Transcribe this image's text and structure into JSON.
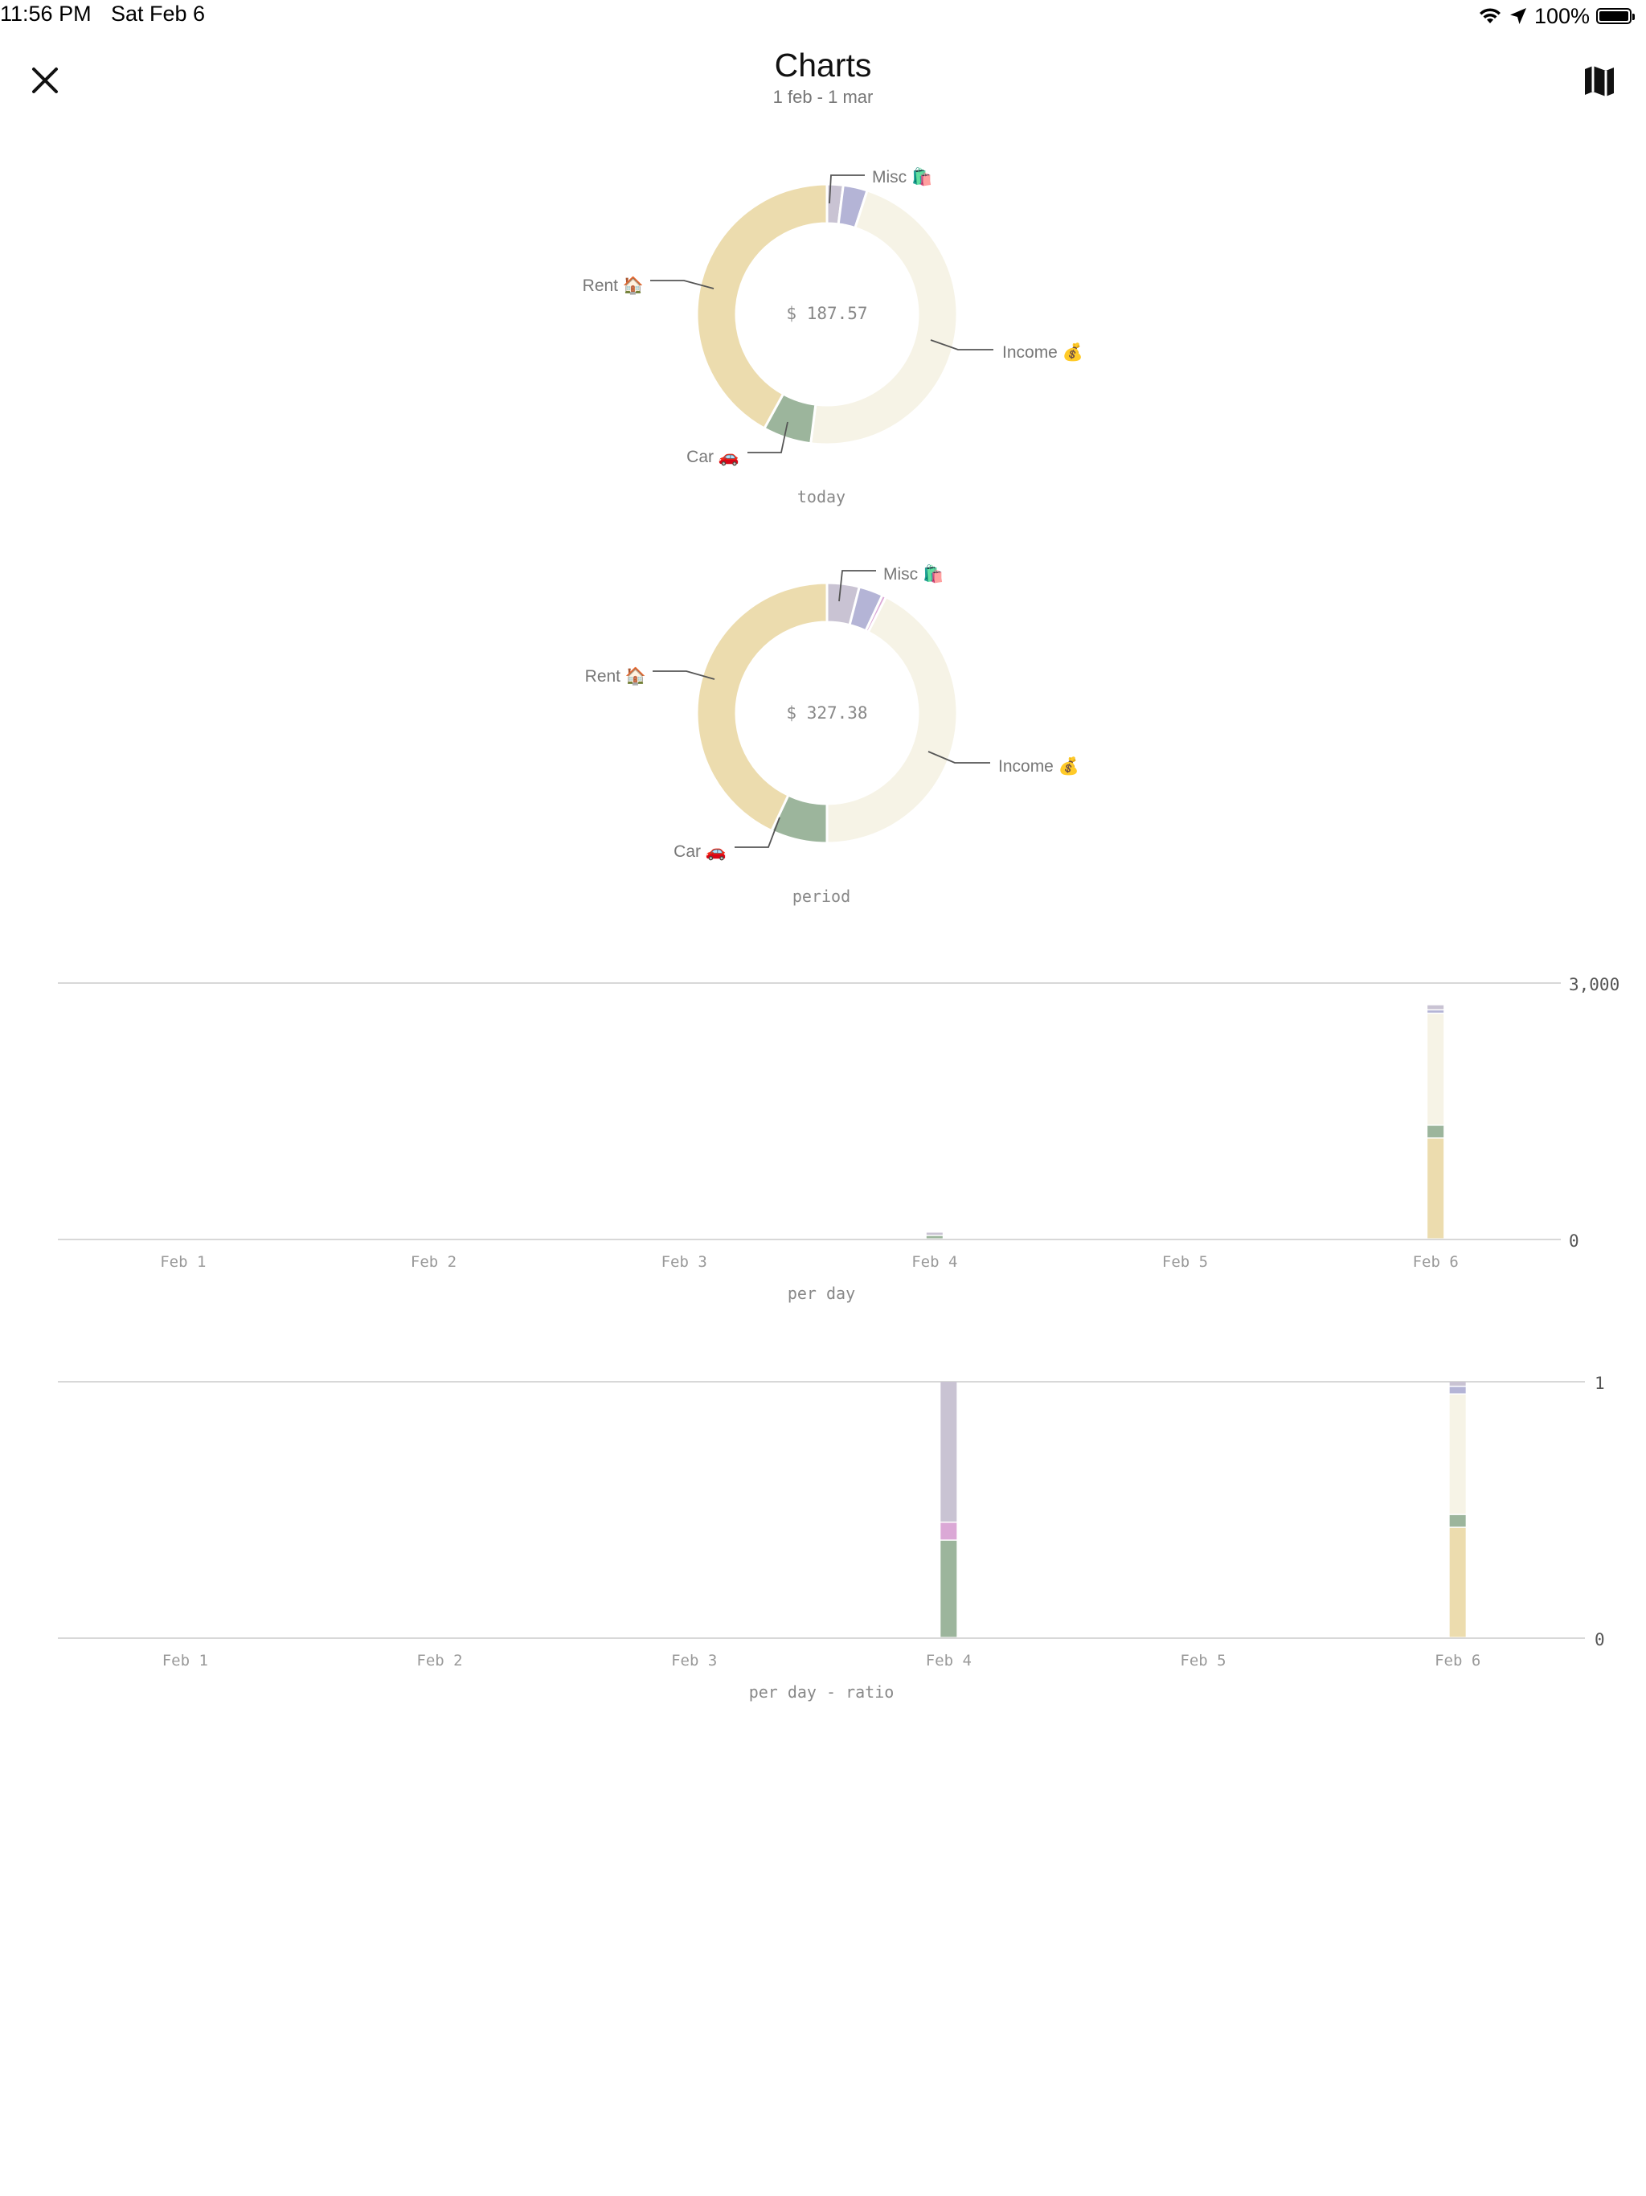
{
  "status_bar": {
    "time": "11:56 PM",
    "date": "Sat Feb 6",
    "battery": "100%",
    "icons": [
      "wifi-icon",
      "location-arrow-icon",
      "battery-icon"
    ]
  },
  "nav": {
    "title": "Charts",
    "subtitle": "1 feb - 1 mar",
    "close_icon": "close-icon",
    "map_icon": "map-icon"
  },
  "colors": {
    "rent": "#ecdcae",
    "income": "#f6f3e6",
    "car": "#9cb59c",
    "misc_gray": "#c9c3d3",
    "misc_lavender": "#b4b4d6",
    "pink": "#dba8d6",
    "axis": "#d8d8d8",
    "label": "#777777"
  },
  "chart_data": [
    {
      "type": "pie",
      "donut": true,
      "center_label": "$ 187.57",
      "caption": "today",
      "labels": [
        "Misc 🛍️",
        "Income 💰",
        "Car 🚗",
        "Rent 🏠"
      ],
      "slices": [
        {
          "color_key": "misc_gray",
          "fraction": 0.02
        },
        {
          "color_key": "misc_lavender",
          "fraction": 0.03
        },
        {
          "color_key": "income",
          "fraction": 0.47
        },
        {
          "color_key": "car",
          "fraction": 0.06
        },
        {
          "color_key": "rent",
          "fraction": 0.42
        }
      ]
    },
    {
      "type": "pie",
      "donut": true,
      "center_label": "$ 327.38",
      "caption": "period",
      "labels": [
        "Misc 🛍️",
        "Income 💰",
        "Car 🚗",
        "Rent 🏠"
      ],
      "slices": [
        {
          "color_key": "misc_gray",
          "fraction": 0.04
        },
        {
          "color_key": "misc_lavender",
          "fraction": 0.03
        },
        {
          "color_key": "pink",
          "fraction": 0.005
        },
        {
          "color_key": "income",
          "fraction": 0.425
        },
        {
          "color_key": "car",
          "fraction": 0.07
        },
        {
          "color_key": "rent",
          "fraction": 0.43
        }
      ]
    },
    {
      "type": "bar",
      "stacked": true,
      "caption": "per day",
      "categories": [
        "Feb 1",
        "Feb 2",
        "Feb 3",
        "Feb 4",
        "Feb 5",
        "Feb 6"
      ],
      "ylim": [
        0,
        3000
      ],
      "yticks": [
        "3,000",
        "0"
      ],
      "stacks": [
        [],
        [],
        [],
        [
          {
            "color_key": "car",
            "value": 40
          },
          {
            "color_key": "misc_gray",
            "value": 40
          }
        ],
        [],
        [
          {
            "color_key": "rent",
            "value": 1180
          },
          {
            "color_key": "car",
            "value": 150
          },
          {
            "color_key": "income",
            "value": 1310
          },
          {
            "color_key": "misc_lavender",
            "value": 40
          },
          {
            "color_key": "misc_gray",
            "value": 60
          }
        ]
      ]
    },
    {
      "type": "bar",
      "stacked": true,
      "caption": "per day - ratio",
      "categories": [
        "Feb 1",
        "Feb 2",
        "Feb 3",
        "Feb 4",
        "Feb 5",
        "Feb 6"
      ],
      "ylim": [
        0,
        1
      ],
      "yticks": [
        "1",
        "0"
      ],
      "stacks": [
        [],
        [],
        [],
        [
          {
            "color_key": "car",
            "value": 0.38
          },
          {
            "color_key": "pink",
            "value": 0.07
          },
          {
            "color_key": "misc_gray",
            "value": 0.55
          }
        ],
        [],
        [
          {
            "color_key": "rent",
            "value": 0.43
          },
          {
            "color_key": "car",
            "value": 0.05
          },
          {
            "color_key": "income",
            "value": 0.47
          },
          {
            "color_key": "misc_lavender",
            "value": 0.03
          },
          {
            "color_key": "misc_gray",
            "value": 0.02
          }
        ]
      ]
    }
  ]
}
